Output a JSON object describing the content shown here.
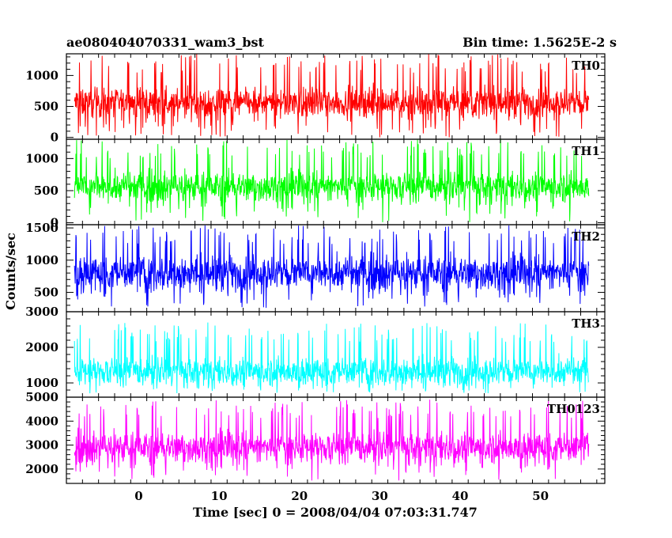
{
  "header": {
    "title": "ae080404070331_wam3_bst",
    "bin_time": "Bin time: 1.5625E-2 s"
  },
  "chart_data": {
    "type": "line",
    "xlabel": "Time [sec] 0 = 2008/04/04 07:03:31.747",
    "ylabel": "Counts/sec",
    "xlim": [
      -9,
      58
    ],
    "x_ticks": [
      0,
      10,
      20,
      30,
      40,
      50
    ],
    "x_range_data": [
      -8,
      56
    ],
    "panels": [
      {
        "name": "TH0",
        "color": "#ff0000",
        "ylim": [
          -30,
          1350
        ],
        "ticks": [
          0,
          500,
          1000
        ],
        "base": 560,
        "noise": 150,
        "spike_max": 1350,
        "spike_min": 0
      },
      {
        "name": "TH1",
        "color": "#00ff00",
        "ylim": [
          -30,
          1300
        ],
        "ticks": [
          0,
          500,
          1000
        ],
        "base": 560,
        "noise": 150,
        "spike_max": 1300,
        "spike_min": 0
      },
      {
        "name": "TH2",
        "color": "#0000ff",
        "ylim": [
          200,
          1550
        ],
        "ticks": [
          500,
          1000,
          1500
        ],
        "base": 800,
        "noise": 170,
        "spike_max": 1550,
        "spike_min": 250
      },
      {
        "name": "TH3",
        "color": "#00ffff",
        "ylim": [
          600,
          3000
        ],
        "ticks": [
          1000,
          2000,
          3000
        ],
        "base": 1320,
        "noise": 260,
        "spike_max": 2700,
        "spike_min": 700
      },
      {
        "name": "TH0123",
        "color": "#ff00ff",
        "ylim": [
          1400,
          5000
        ],
        "ticks": [
          2000,
          3000,
          4000,
          5000
        ],
        "base": 2900,
        "noise": 420,
        "spike_max": 4900,
        "spike_min": 1500
      }
    ]
  }
}
